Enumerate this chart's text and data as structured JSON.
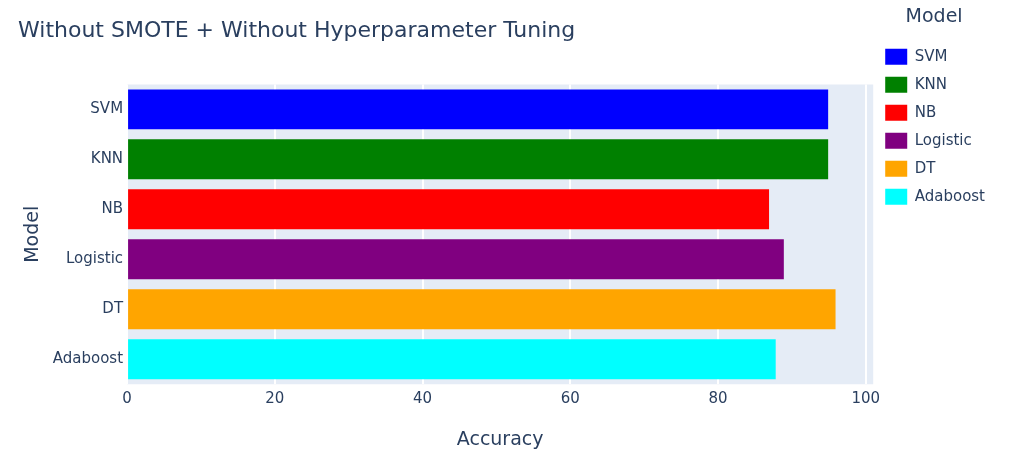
{
  "chart_data": {
    "type": "bar",
    "orientation": "horizontal",
    "title": "Without SMOTE + Without Hyperparameter Tuning",
    "xlabel": "Accuracy",
    "ylabel": "Model",
    "legend_title": "Model",
    "categories": [
      "SVM",
      "KNN",
      "NB",
      "Logistic",
      "DT",
      "Adaboost"
    ],
    "series": [
      {
        "name": "SVM",
        "color": "#0000ff",
        "values": [
          94.9,
          null,
          null,
          null,
          null,
          null
        ]
      },
      {
        "name": "KNN",
        "color": "#008000",
        "values": [
          null,
          94.9,
          null,
          null,
          null,
          null
        ]
      },
      {
        "name": "NB",
        "color": "#ff0000",
        "values": [
          null,
          null,
          86.9,
          null,
          null,
          null
        ]
      },
      {
        "name": "Logistic",
        "color": "#800080",
        "values": [
          null,
          null,
          null,
          88.9,
          null,
          null
        ]
      },
      {
        "name": "DT",
        "color": "#ffa500",
        "values": [
          null,
          null,
          null,
          null,
          95.9,
          null
        ]
      },
      {
        "name": "Adaboost",
        "color": "#00ffff",
        "values": [
          null,
          null,
          null,
          null,
          null,
          87.8
        ]
      }
    ],
    "xlim": [
      0,
      101
    ],
    "xticks": [
      0,
      20,
      40,
      60,
      80,
      100
    ],
    "grid": "x",
    "legend": "right"
  }
}
